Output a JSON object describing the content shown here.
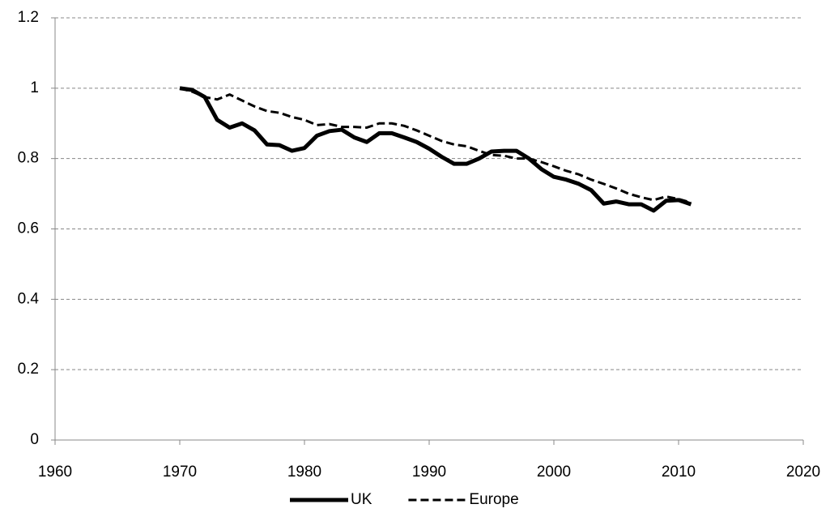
{
  "chart_data": {
    "type": "line",
    "x": [
      1970,
      1971,
      1972,
      1973,
      1974,
      1975,
      1976,
      1977,
      1978,
      1979,
      1980,
      1981,
      1982,
      1983,
      1984,
      1985,
      1986,
      1987,
      1988,
      1989,
      1990,
      1991,
      1992,
      1993,
      1994,
      1995,
      1996,
      1997,
      1998,
      1999,
      2000,
      2001,
      2002,
      2003,
      2004,
      2005,
      2006,
      2007,
      2008,
      2009,
      2010,
      2011
    ],
    "series": [
      {
        "name": "UK",
        "color": "#000000",
        "line_style": "solid",
        "values": [
          1.0,
          0.995,
          0.975,
          0.91,
          0.888,
          0.9,
          0.88,
          0.84,
          0.838,
          0.822,
          0.83,
          0.865,
          0.878,
          0.882,
          0.86,
          0.847,
          0.872,
          0.872,
          0.86,
          0.847,
          0.828,
          0.805,
          0.785,
          0.785,
          0.8,
          0.82,
          0.822,
          0.822,
          0.8,
          0.77,
          0.748,
          0.74,
          0.728,
          0.71,
          0.672,
          0.678,
          0.67,
          0.67,
          0.652,
          0.68,
          0.682,
          0.67
        ]
      },
      {
        "name": "Europe",
        "color": "#000000",
        "line_style": "dashed",
        "values": [
          1.0,
          0.99,
          0.975,
          0.968,
          0.982,
          0.965,
          0.948,
          0.935,
          0.93,
          0.918,
          0.91,
          0.895,
          0.898,
          0.89,
          0.89,
          0.888,
          0.9,
          0.9,
          0.893,
          0.88,
          0.865,
          0.85,
          0.84,
          0.835,
          0.822,
          0.81,
          0.808,
          0.8,
          0.8,
          0.79,
          0.778,
          0.765,
          0.755,
          0.74,
          0.728,
          0.715,
          0.7,
          0.69,
          0.682,
          0.692,
          0.685,
          0.675
        ]
      }
    ],
    "xlim": [
      1960,
      2020
    ],
    "xticks": [
      1960,
      1970,
      1980,
      1990,
      2000,
      2010,
      2020
    ],
    "ylim": [
      0,
      1.2
    ],
    "yticks": [
      0,
      0.2,
      0.4,
      0.6,
      0.8,
      1,
      1.2
    ],
    "grid": true,
    "legend": "bottom"
  }
}
